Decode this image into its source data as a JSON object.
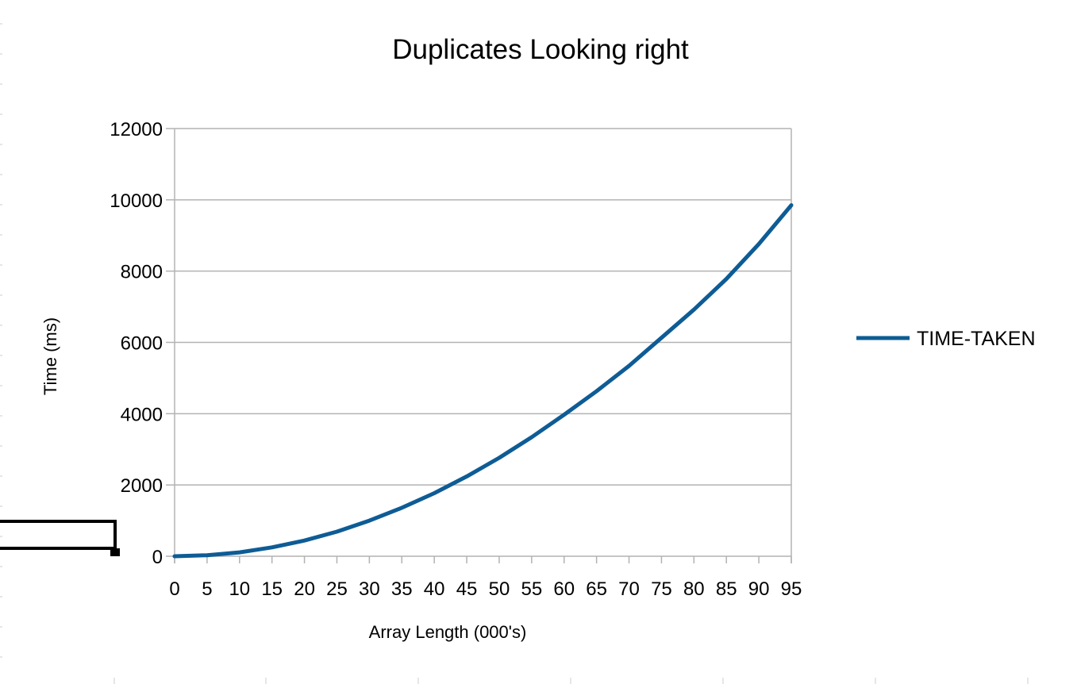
{
  "chart_data": {
    "type": "line",
    "title": "Duplicates Looking right",
    "xlabel": "Array Length (000's)",
    "ylabel": "Time (ms)",
    "categories": [
      "0",
      "5",
      "10",
      "15",
      "20",
      "25",
      "30",
      "35",
      "40",
      "45",
      "50",
      "55",
      "60",
      "65",
      "70",
      "75",
      "80",
      "85",
      "90",
      "95"
    ],
    "series": [
      {
        "name": "TIME-TAKEN",
        "color": "#0e5c95",
        "values": [
          0,
          30,
          110,
          250,
          440,
          690,
          1000,
          1360,
          1770,
          2240,
          2760,
          3340,
          3970,
          4630,
          5340,
          6130,
          6920,
          7780,
          8760,
          9850
        ]
      }
    ],
    "ylim": [
      0,
      12000
    ],
    "yticks": [
      0,
      2000,
      4000,
      6000,
      8000,
      10000,
      12000
    ],
    "grid": true,
    "legend_position": "right"
  },
  "colors": {
    "grid": "#b3b3b3",
    "series": "#0e5c95",
    "page_marks": "#000000"
  }
}
